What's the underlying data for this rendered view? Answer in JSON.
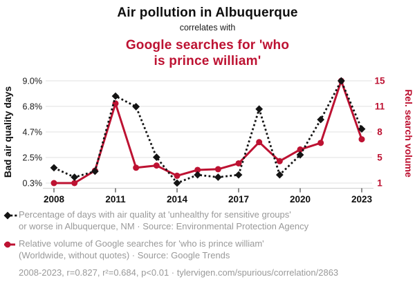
{
  "header": {
    "title": "Air pollution in Albuquerque",
    "subtitle": "correlates with",
    "title_secondary": "Google searches for 'who\nis prince william'"
  },
  "colors": {
    "accent_red": "#bd1232",
    "series_black": "#141414",
    "legend_text": "#999999",
    "grid": "#e7e7e7",
    "axis_line": "#cfcfcf",
    "tick": "#4d4d4d",
    "tick_label": "#1a1a1a"
  },
  "chart_data": {
    "type": "line",
    "x": [
      2008,
      2009,
      2010,
      2011,
      2012,
      2013,
      2014,
      2015,
      2016,
      2017,
      2018,
      2019,
      2020,
      2021,
      2022,
      2023
    ],
    "x_tick_labels": [
      "2008",
      "2011",
      "2014",
      "2017",
      "2020",
      "2023"
    ],
    "grid": true,
    "legend_position": "below",
    "left_axis": {
      "label": "Bad air quality days",
      "min": 0.3,
      "max": 9.0,
      "tick_labels_top_to_bottom": [
        "9.0%",
        "6.8%",
        "4.7%",
        "2.5%",
        "0.3%"
      ]
    },
    "right_axis": {
      "label": "Rel. search volume",
      "min": 1,
      "max": 15,
      "tick_labels_top_to_bottom": [
        "15",
        "11",
        "8",
        "5",
        "1"
      ]
    },
    "series": [
      {
        "name": "Percentage of days with air quality at 'unhealthy for sensitive groups' or worse in Albuquerque, NM",
        "axis": "left",
        "line_style": "dashed",
        "marker": "diamond",
        "color": "#141414",
        "values": [
          1.6,
          0.8,
          1.3,
          7.7,
          6.8,
          2.5,
          0.3,
          1.0,
          0.8,
          1.0,
          6.6,
          1.0,
          2.7,
          5.7,
          9.0,
          4.9
        ]
      },
      {
        "name": "Relative volume of Google searches for 'who is prince william'",
        "axis": "right",
        "line_style": "solid",
        "marker": "circle",
        "color": "#bd1232",
        "values": [
          1.0,
          1.0,
          2.7,
          11.9,
          3.1,
          3.4,
          2.0,
          2.8,
          2.9,
          3.7,
          6.6,
          4.0,
          5.6,
          6.5,
          15.0,
          7.0
        ]
      }
    ]
  },
  "legend": [
    {
      "marker": "black-diamond-dashed-line",
      "text": "Percentage of days with air quality at 'unhealthy for sensitive groups'\nor worse in Albuquerque, NM · Source: Environmental Protection Agency"
    },
    {
      "marker": "red-circle-solid-line",
      "text": "Relative volume of Google searches for 'who is prince william'\n(Worldwide, without quotes) · Source: Google Trends"
    }
  ],
  "footer": {
    "stats": "2008-2023, r=0.827, r²=0.684, p<0.01 · tylervigen.com/spurious/correlation/2863"
  }
}
